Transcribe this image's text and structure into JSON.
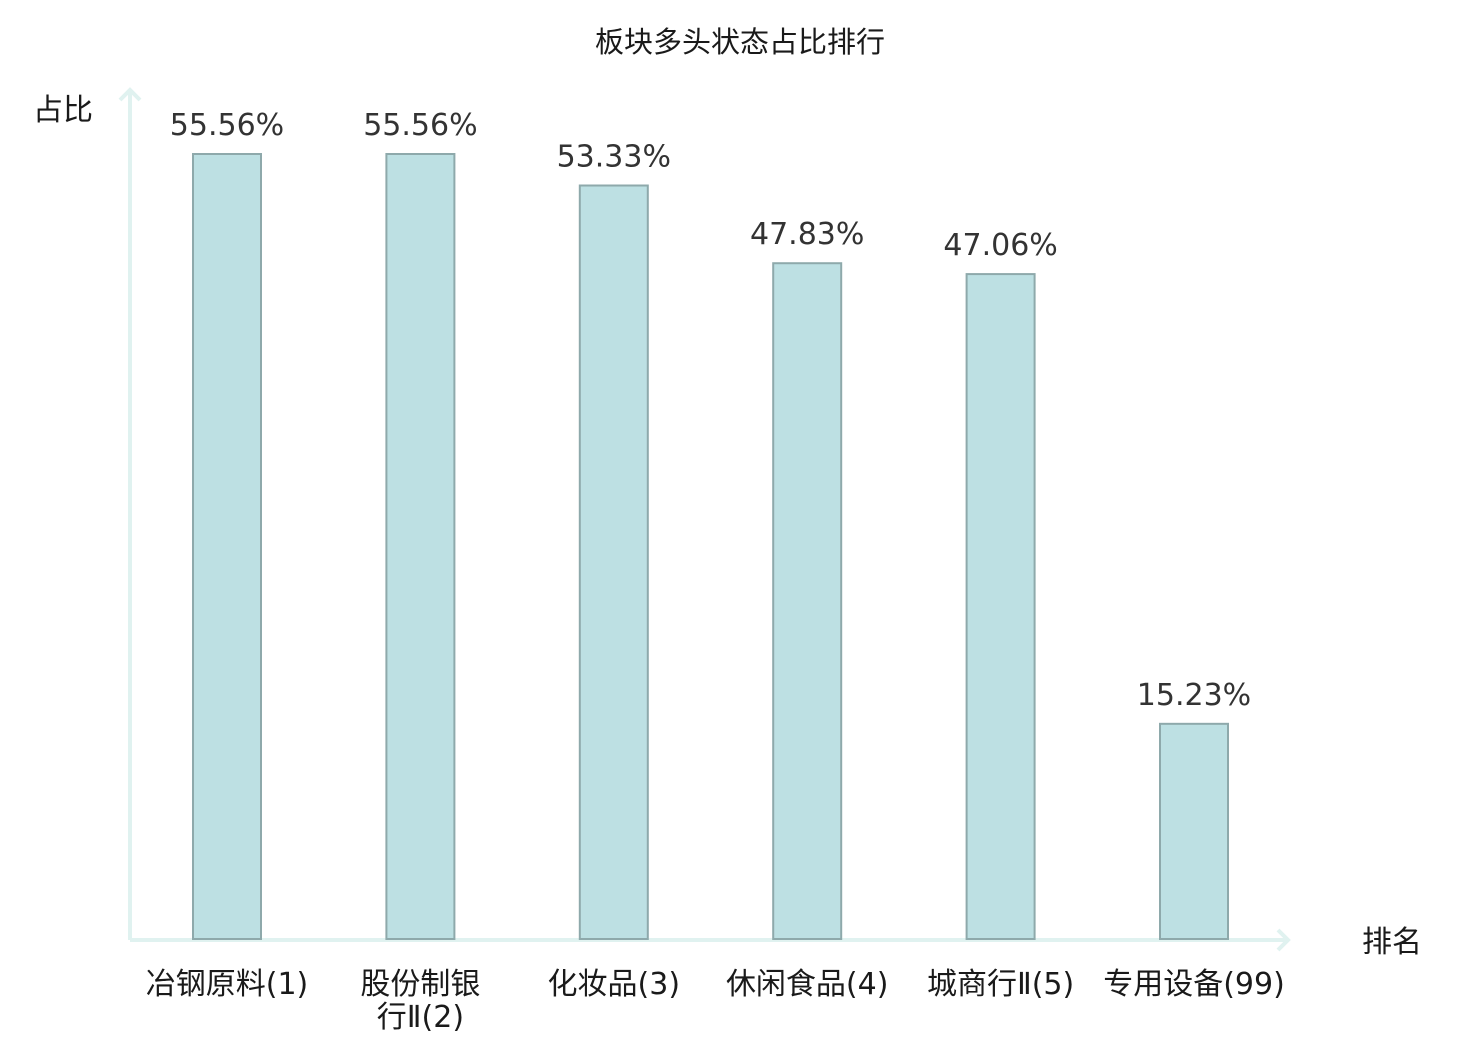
{
  "chart_data": {
    "type": "bar",
    "title": "板块多头状态占比排行",
    "ylabel": "占比",
    "xlabel": "排名",
    "categories": [
      [
        "冶钢原料(1)"
      ],
      [
        "股份制银",
        "行Ⅱ(2)"
      ],
      [
        "化妆品(3)"
      ],
      [
        "休闲食品(4)"
      ],
      [
        "城商行Ⅱ(5)"
      ],
      [
        "专用设备(99)"
      ]
    ],
    "values": [
      55.56,
      55.56,
      53.33,
      47.83,
      47.06,
      15.23
    ],
    "value_labels": [
      "55.56%",
      "55.56%",
      "53.33%",
      "47.83%",
      "47.06%",
      "15.23%"
    ],
    "highlight_index": 5,
    "ylim": [
      0,
      55.56
    ],
    "grid": false,
    "legend": "none",
    "colors": {
      "bar_fill": "#bde0e3",
      "bar_stroke": "#8ea9ab",
      "axis": "#e0f2f0",
      "highlight_text": "#e03131",
      "text": "#1a1a1a",
      "value_text": "#333333"
    }
  }
}
